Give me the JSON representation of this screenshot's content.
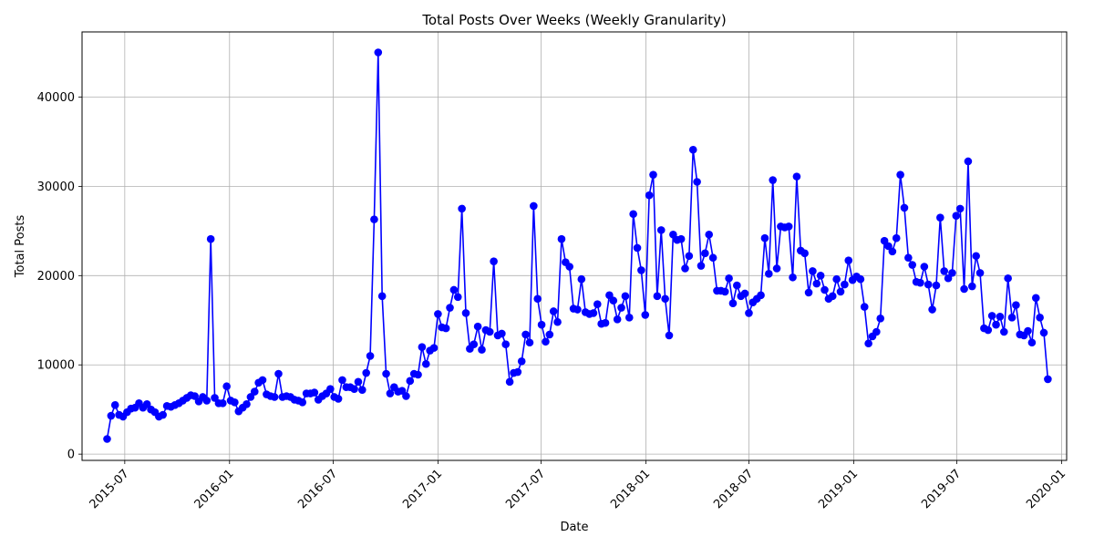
{
  "chart_data": {
    "type": "line",
    "title": "Total Posts Over Weeks (Weekly Granularity)",
    "xlabel": "Date",
    "ylabel": "Total Posts",
    "grid": true,
    "color": "#0000ff",
    "xlim": [
      "2015-04-17",
      "2020-01-10"
    ],
    "ylim": [
      -700,
      47300
    ],
    "x_ticks": [
      "2015-07",
      "2016-01",
      "2016-07",
      "2017-01",
      "2017-07",
      "2018-01",
      "2018-07",
      "2019-01",
      "2019-07",
      "2020-01"
    ],
    "y_ticks": [
      0,
      10000,
      20000,
      30000,
      40000
    ],
    "start_date": "2015-05-31",
    "interval_days": 7,
    "series": [
      {
        "name": "Total Posts",
        "values": [
          1700,
          4300,
          5500,
          4400,
          4200,
          4700,
          5100,
          5200,
          5700,
          5200,
          5600,
          5000,
          4700,
          4200,
          4400,
          5400,
          5300,
          5500,
          5700,
          6000,
          6300,
          6600,
          6500,
          5900,
          6400,
          6000,
          24100,
          6300,
          5700,
          5700,
          7600,
          6000,
          5800,
          4800,
          5200,
          5600,
          6400,
          7000,
          8000,
          8300,
          6700,
          6500,
          6400,
          9000,
          6400,
          6500,
          6400,
          6100,
          6000,
          5800,
          6800,
          6800,
          6900,
          6100,
          6500,
          6800,
          7300,
          6400,
          6200,
          8300,
          7500,
          7500,
          7300,
          8100,
          7200,
          9100,
          11000,
          26300,
          45000,
          17700,
          9000,
          6800,
          7500,
          7000,
          7100,
          6500,
          8200,
          9000,
          8900,
          12000,
          10100,
          11600,
          11900,
          15700,
          14200,
          14100,
          16400,
          18400,
          17600,
          27500,
          15800,
          11800,
          12300,
          14300,
          11700,
          13900,
          13700,
          21600,
          13300,
          13500,
          12300,
          8100,
          9100,
          9200,
          10400,
          13400,
          12500,
          27800,
          17400,
          14500,
          12600,
          13400,
          16000,
          14800,
          24100,
          21500,
          21000,
          16300,
          16200,
          19600,
          15900,
          15700,
          15800,
          16800,
          14600,
          14700,
          17800,
          17200,
          15100,
          16400,
          17700,
          15300,
          26900,
          23100,
          20600,
          15600,
          29000,
          31300,
          17700,
          25100,
          17400,
          13300,
          24600,
          24000,
          24100,
          20800,
          22200,
          34100,
          30500,
          21100,
          22500,
          24600,
          22000,
          18300,
          18300,
          18200,
          19700,
          16900,
          18900,
          17700,
          18000,
          15800,
          17000,
          17400,
          17800,
          24200,
          20200,
          30700,
          20800,
          25500,
          25400,
          25500,
          19800,
          31100,
          22800,
          22500,
          18100,
          20500,
          19100,
          20000,
          18400,
          17400,
          17700,
          19600,
          18200,
          19000,
          21700,
          19500,
          19900,
          19600,
          16500,
          12400,
          13200,
          13700,
          15200,
          23900,
          23300,
          22700,
          24200,
          31300,
          27600,
          22000,
          21200,
          19300,
          19200,
          21000,
          19000,
          16200,
          18900,
          26500,
          20500,
          19700,
          20300,
          26700,
          27500,
          18500,
          32800,
          18800,
          22200,
          20300,
          14100,
          13900,
          15500,
          14500,
          15400,
          13700,
          19700,
          15300,
          16700,
          13400,
          13300,
          13800,
          12500,
          17500,
          15300,
          13600,
          8400
        ]
      }
    ]
  }
}
